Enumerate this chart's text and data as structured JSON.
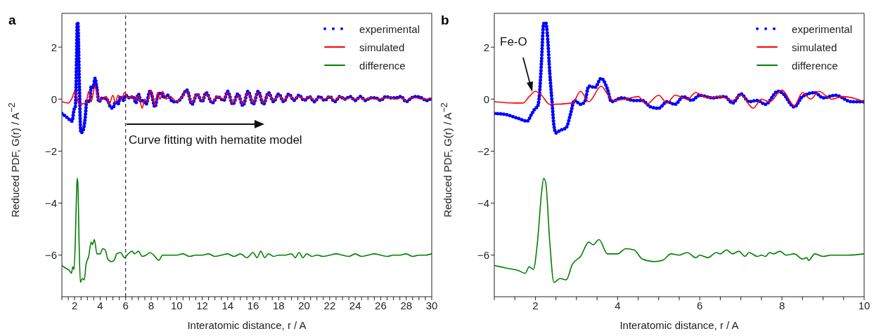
{
  "chart_data": [
    {
      "type": "line",
      "title": "a",
      "xlabel": "Interatomic distance, r / A",
      "ylabel": "Reduced PDF, G(r) / A$^{−2}$",
      "xlim": [
        1,
        30
      ],
      "ylim": [
        -7.6,
        3.3
      ],
      "xticks": [
        {
          "value": 1,
          "label": null
        },
        {
          "value": 1.5,
          "label": null
        },
        2,
        {
          "value": 2.5,
          "label": null
        },
        {
          "value": 3,
          "label": null
        },
        {
          "value": 3.5,
          "label": null
        },
        4,
        {
          "value": 4.5,
          "label": null
        },
        {
          "value": 5,
          "label": null
        },
        {
          "value": 5.5,
          "label": null
        },
        6,
        {
          "value": 6.5,
          "label": null
        },
        {
          "value": 7,
          "label": null
        },
        {
          "value": 7.5,
          "label": null
        },
        8,
        {
          "value": 8.5,
          "label": null
        },
        {
          "value": 9,
          "label": null
        },
        {
          "value": 9.5,
          "label": null
        },
        10,
        {
          "value": 10.5,
          "label": null
        },
        {
          "value": 11,
          "label": null
        },
        {
          "value": 11.5,
          "label": null
        },
        12,
        {
          "value": 12.5,
          "label": null
        },
        {
          "value": 13,
          "label": null
        },
        {
          "value": 13.5,
          "label": null
        },
        14,
        {
          "value": 14.5,
          "label": null
        },
        {
          "value": 15,
          "label": null
        },
        {
          "value": 15.5,
          "label": null
        },
        16,
        {
          "value": 16.5,
          "label": null
        },
        {
          "value": 17,
          "label": null
        },
        {
          "value": 17.5,
          "label": null
        },
        18,
        {
          "value": 18.5,
          "label": null
        },
        {
          "value": 19,
          "label": null
        },
        {
          "value": 19.5,
          "label": null
        },
        20,
        {
          "value": 20.5,
          "label": null
        },
        {
          "value": 21,
          "label": null
        },
        {
          "value": 21.5,
          "label": null
        },
        22,
        {
          "value": 22.5,
          "label": null
        },
        {
          "value": 23,
          "label": null
        },
        {
          "value": 23.5,
          "label": null
        },
        24,
        {
          "value": 24.5,
          "label": null
        },
        {
          "value": 25,
          "label": null
        },
        {
          "value": 25.5,
          "label": null
        },
        26,
        {
          "value": 26.5,
          "label": null
        },
        {
          "value": 27,
          "label": null
        },
        {
          "value": 27.5,
          "label": null
        },
        28,
        {
          "value": 28.5,
          "label": null
        },
        {
          "value": 29,
          "label": null
        },
        {
          "value": 29.5,
          "label": null
        },
        30
      ],
      "yticks": [
        -6,
        -4,
        -2,
        0,
        2
      ],
      "legend": "top right",
      "ref_lines": [
        {
          "axis": "x",
          "value": 6,
          "label": null,
          "color": "#000000",
          "line_style": "dashed"
        }
      ],
      "annotations": [
        "Curve fitting with hematite model"
      ],
      "series": [
        {
          "name": "experimental",
          "color": "#0000ff",
          "line_style": "dotted",
          "x": [
            1,
            1.4,
            1.8,
            1.95,
            2.05,
            2.1,
            2.15,
            2.2,
            2.25,
            2.3,
            2.35,
            2.4,
            2.45,
            2.5,
            2.7,
            2.85,
            2.95,
            3.2,
            3.3,
            3.45,
            3.6,
            3.75,
            3.9,
            4.2,
            4.6,
            4.8,
            5.0,
            5.2,
            5.4,
            5.6,
            5.8,
            6.0,
            6.3,
            6.6,
            6.8,
            7.0,
            7.2,
            7.4,
            7.6,
            7.9,
            8.0,
            8.3,
            8.5,
            8.8,
            9.0,
            9.3,
            9.7,
            10,
            10.3,
            10.8,
            11.2,
            11.6,
            12.0,
            12.3,
            12.8,
            13.2,
            13.7,
            14.0,
            14.4,
            14.8,
            15.2,
            15.6,
            16.0,
            16.4,
            16.8,
            17.2,
            17.6,
            18.0,
            18.4,
            18.8,
            19.2,
            19.6,
            20.0,
            20.4,
            20.8,
            21.2,
            21.6,
            22.0,
            22.4,
            22.8,
            23.2,
            23.6,
            24.0,
            24.4,
            24.8,
            25.2,
            25.6,
            26.0,
            26.4,
            26.8,
            27.2,
            27.6,
            28.0,
            28.4,
            28.8,
            29.2,
            29.6,
            30
          ],
          "values": [
            -0.55,
            -0.7,
            -0.85,
            -0.4,
            -0.3,
            0.2,
            1.5,
            2.9,
            2.95,
            2.3,
            1.0,
            0,
            -1.0,
            -1.3,
            -1.15,
            -0.6,
            -0.05,
            -0.1,
            0.5,
            0.45,
            0.8,
            0.4,
            -0.1,
            0.05,
            -0.05,
            -0.3,
            -0.35,
            -0.1,
            -0.2,
            0.1,
            -0.05,
            0.15,
            0.05,
            0.1,
            -0.15,
            0.2,
            -0.1,
            -0.05,
            -0.2,
            0.3,
            0.25,
            -0.3,
            0.1,
            0.25,
            0.05,
            0.15,
            -0.1,
            -0.1,
            0.0,
            0.35,
            -0.2,
            0.2,
            -0.1,
            0.25,
            -0.15,
            0.1,
            -0.05,
            0.3,
            -0.2,
            0.2,
            -0.25,
            0.3,
            -0.2,
            0.3,
            -0.2,
            0.25,
            -0.1,
            0.2,
            -0.1,
            0.2,
            -0.05,
            0.15,
            -0.05,
            0.1,
            -0.1,
            0.1,
            -0.05,
            0.1,
            -0.1,
            0.1,
            0.0,
            0.1,
            -0.05,
            0.1,
            -0.05,
            0.05,
            0.05,
            -0.05,
            0.1,
            0.05,
            0.05,
            0.1,
            -0.1,
            0.05,
            0.1,
            0.05,
            -0.05,
            0.05
          ]
        },
        {
          "name": "simulated",
          "color": "#ff0000",
          "line_style": "solid",
          "x": [
            1,
            1.5,
            1.85,
            2.0,
            2.15,
            2.35,
            2.9,
            3.1,
            3.3,
            3.6,
            3.75,
            3.9,
            4.2,
            4.5,
            4.7,
            5.0,
            5.2,
            5.4,
            5.7,
            5.9,
            6.2,
            6.5,
            6.8,
            7.0,
            7.3,
            7.5,
            7.7,
            8.0,
            8.3,
            8.5,
            8.7,
            8.9,
            9.2,
            9.5,
            10,
            10.3,
            10.8,
            11.2,
            11.6,
            12.0,
            12.3,
            12.8,
            13.2,
            13.7,
            14.0,
            14.4,
            14.8,
            15.2,
            15.6,
            16.0,
            16.4,
            16.8,
            17.2,
            17.6,
            18.0,
            18.4,
            18.8,
            19.2,
            19.6,
            20.0,
            20.4,
            20.8,
            21.2,
            21.6,
            22.0,
            22.4,
            22.8,
            23.2,
            23.6,
            24.0,
            24.4,
            24.8,
            25.2,
            25.6,
            26.0,
            26.4,
            26.8,
            27.2,
            27.6,
            28.0,
            28.4,
            28.8,
            29.2,
            29.6,
            30
          ],
          "values": [
            -0.1,
            -0.15,
            0.1,
            0.3,
            0.15,
            -0.2,
            -0.15,
            0.3,
            -0.1,
            0.5,
            0.2,
            -0.05,
            0.0,
            0.1,
            -0.2,
            0.15,
            -0.15,
            0.15,
            0.0,
            0.25,
            0.05,
            0.1,
            -0.05,
            0.15,
            -0.35,
            0.0,
            -0.1,
            0.35,
            -0.25,
            0.25,
            0.0,
            0.3,
            0.0,
            0.1,
            -0.1,
            0.0,
            0.3,
            -0.15,
            0.2,
            -0.05,
            0.2,
            -0.1,
            0.1,
            0.0,
            0.25,
            -0.15,
            0.15,
            -0.2,
            0.25,
            -0.15,
            0.25,
            -0.15,
            0.2,
            -0.05,
            0.15,
            -0.05,
            0.15,
            0.0,
            0.1,
            0.0,
            0.1,
            -0.05,
            0.05,
            0.0,
            0.1,
            -0.05,
            0.1,
            0.0,
            0.05,
            0.0,
            0.05,
            0.0,
            0.05,
            0.0,
            0.0,
            0.05,
            0.05,
            0.0,
            0.05,
            -0.05,
            0.05,
            0.05,
            0.0,
            0.0,
            0.05
          ]
        },
        {
          "name": "difference",
          "color": "#008000",
          "line_style": "solid",
          "x": [
            1.0,
            1.3,
            1.6,
            1.75,
            1.85,
            1.95,
            2.05,
            2.15,
            2.2,
            2.25,
            2.35,
            2.45,
            2.6,
            2.75,
            2.9,
            3.1,
            3.3,
            3.4,
            3.55,
            3.75,
            4.0,
            4.2,
            4.4,
            4.6,
            4.9,
            5.1,
            5.3,
            5.6,
            5.9,
            6.2,
            6.5,
            6.7,
            7.0,
            7.3,
            7.6,
            7.9,
            8.2,
            8.6,
            8.9,
            9.3,
            10,
            10.5,
            11,
            11.5,
            12,
            12.5,
            13,
            13.5,
            14,
            14.5,
            15,
            15.5,
            16,
            16.3,
            16.6,
            16.9,
            17.2,
            17.6,
            18,
            18.5,
            19,
            19.3,
            19.6,
            19.9,
            20.2,
            20.6,
            21,
            21.5,
            22,
            22.5,
            23,
            23.5,
            24,
            24.5,
            25,
            25.5,
            26,
            26.5,
            27,
            27.5,
            28,
            28.5,
            29,
            29.5,
            30
          ],
          "values": [
            -6.4,
            -6.5,
            -6.6,
            -6.7,
            -6.45,
            -6.55,
            -5.5,
            -3.6,
            -3.05,
            -3.2,
            -5.5,
            -7.05,
            -6.9,
            -6.95,
            -6.35,
            -6.05,
            -5.5,
            -5.6,
            -5.4,
            -5.95,
            -5.95,
            -5.75,
            -5.8,
            -6.15,
            -6.25,
            -6.2,
            -5.95,
            -5.9,
            -6.1,
            -5.95,
            -5.85,
            -5.95,
            -5.85,
            -6.05,
            -6.0,
            -5.9,
            -6.0,
            -6.2,
            -6.0,
            -6.0,
            -6.0,
            -5.95,
            -6.05,
            -6.0,
            -6.0,
            -5.95,
            -6.05,
            -6.0,
            -5.95,
            -6.05,
            -5.95,
            -6.1,
            -5.9,
            -6.1,
            -5.85,
            -6.1,
            -5.95,
            -6.05,
            -6.0,
            -6.0,
            -5.95,
            -6.1,
            -5.9,
            -6.1,
            -5.95,
            -6.05,
            -6.0,
            -6.05,
            -6.0,
            -5.95,
            -6.0,
            -6.05,
            -5.95,
            -6.05,
            -6.0,
            -5.95,
            -6.0,
            -6.05,
            -6.0,
            -6.0,
            -5.95,
            -6.05,
            -6.0,
            -6.0,
            -5.95
          ]
        }
      ]
    },
    {
      "type": "line",
      "title": "b",
      "xlabel": "Interatomic distance, r / A",
      "ylabel": "Reduced PDF, G(r) / A$^{−2}$",
      "xlim": [
        1,
        10
      ],
      "ylim": [
        -7.6,
        3.3
      ],
      "xticks": [
        {
          "value": 1,
          "label": null
        },
        {
          "value": 1.5,
          "label": null
        },
        2,
        {
          "value": 2.5,
          "label": null
        },
        {
          "value": 3,
          "label": null
        },
        {
          "value": 3.5,
          "label": null
        },
        4,
        {
          "value": 4.5,
          "label": null
        },
        {
          "value": 5,
          "label": null
        },
        {
          "value": 5.5,
          "label": null
        },
        6,
        {
          "value": 6.5,
          "label": null
        },
        {
          "value": 7,
          "label": null
        },
        {
          "value": 7.5,
          "label": null
        },
        8,
        {
          "value": 8.5,
          "label": null
        },
        {
          "value": 9,
          "label": null
        },
        {
          "value": 9.5,
          "label": null
        },
        10
      ],
      "yticks": [
        -6,
        -4,
        -2,
        0,
        2
      ],
      "legend": "top right",
      "annotations": [
        "Fe-O"
      ],
      "series": [
        {
          "name": "experimental",
          "color": "#0000ff",
          "line_style": "dotted",
          "x": [
            1,
            1.3,
            1.6,
            1.8,
            1.9,
            2.0,
            2.05,
            2.1,
            2.15,
            2.2,
            2.25,
            2.3,
            2.35,
            2.4,
            2.45,
            2.5,
            2.6,
            2.75,
            2.85,
            2.95,
            3.1,
            3.2,
            3.3,
            3.45,
            3.6,
            3.75,
            3.85,
            4.1,
            4.4,
            4.6,
            4.8,
            5.0,
            5.2,
            5.4,
            5.6,
            5.8,
            6.0,
            6.3,
            6.6,
            6.8,
            7.0,
            7.2,
            7.4,
            7.6,
            7.9,
            8.0,
            8.3,
            8.5,
            8.8,
            9.0,
            9.3,
            9.7,
            10
          ],
          "values": [
            -0.55,
            -0.6,
            -0.75,
            -0.85,
            -0.6,
            -0.35,
            -0.3,
            0.2,
            1.5,
            2.9,
            2.95,
            2.3,
            1.0,
            0,
            -1.0,
            -1.3,
            -1.2,
            -1.1,
            -0.6,
            -0.05,
            -0.2,
            -0.1,
            0.5,
            0.45,
            0.8,
            0.4,
            -0.1,
            0.05,
            -0.05,
            -0.05,
            -0.3,
            -0.35,
            -0.1,
            -0.2,
            0.1,
            -0.05,
            0.15,
            0.05,
            0.1,
            -0.15,
            0.2,
            -0.1,
            -0.05,
            -0.2,
            0.3,
            0.25,
            -0.3,
            0.1,
            0.25,
            0.05,
            0.15,
            -0.1,
            -0.1
          ]
        },
        {
          "name": "simulated",
          "color": "#ff0000",
          "line_style": "solid",
          "x": [
            1,
            1.5,
            1.7,
            1.85,
            2.0,
            2.15,
            2.35,
            2.9,
            3.1,
            3.3,
            3.6,
            3.75,
            3.9,
            4.2,
            4.5,
            4.7,
            5.0,
            5.2,
            5.4,
            5.7,
            5.9,
            6.2,
            6.5,
            6.8,
            7.0,
            7.3,
            7.5,
            7.7,
            8.0,
            8.3,
            8.5,
            8.7,
            8.9,
            9.2,
            9.5,
            10
          ],
          "values": [
            -0.1,
            -0.15,
            -0.15,
            0.1,
            0.3,
            0.15,
            -0.2,
            -0.15,
            0.3,
            -0.1,
            0.5,
            0.2,
            -0.05,
            0.0,
            0.1,
            -0.2,
            0.15,
            -0.15,
            0.15,
            0.0,
            0.25,
            0.05,
            0.1,
            -0.05,
            0.15,
            -0.35,
            0.0,
            -0.1,
            0.35,
            -0.25,
            0.25,
            0.0,
            0.3,
            0.0,
            0.1,
            -0.1
          ]
        },
        {
          "name": "difference",
          "color": "#008000",
          "line_style": "solid",
          "x": [
            1.0,
            1.3,
            1.6,
            1.75,
            1.85,
            1.95,
            2.05,
            2.15,
            2.2,
            2.25,
            2.35,
            2.45,
            2.6,
            2.75,
            2.9,
            3.1,
            3.3,
            3.4,
            3.55,
            3.75,
            4.0,
            4.2,
            4.4,
            4.6,
            4.9,
            5.1,
            5.3,
            5.5,
            5.7,
            5.9,
            6.0,
            6.2,
            6.4,
            6.5,
            6.65,
            6.8,
            6.95,
            7.1,
            7.2,
            7.4,
            7.5,
            7.6,
            7.7,
            7.8,
            7.95,
            8.1,
            8.3,
            8.5,
            8.6,
            8.65,
            8.8,
            9.0,
            9.2,
            9.6,
            10
          ],
          "values": [
            -6.4,
            -6.5,
            -6.6,
            -6.7,
            -6.45,
            -6.55,
            -5.5,
            -3.6,
            -3.05,
            -3.2,
            -5.5,
            -7.05,
            -6.9,
            -6.95,
            -6.35,
            -6.05,
            -5.5,
            -5.6,
            -5.4,
            -5.95,
            -5.95,
            -5.75,
            -5.8,
            -6.15,
            -6.25,
            -6.2,
            -5.95,
            -6.0,
            -5.9,
            -6.1,
            -6.0,
            -6.1,
            -5.9,
            -5.95,
            -5.8,
            -5.95,
            -5.85,
            -6.05,
            -5.9,
            -6.05,
            -6.0,
            -6.05,
            -5.9,
            -5.95,
            -5.85,
            -6.0,
            -5.95,
            -6.15,
            -6.1,
            -6.2,
            -5.95,
            -6.05,
            -6.0,
            -6.0,
            -5.95
          ]
        }
      ]
    }
  ]
}
